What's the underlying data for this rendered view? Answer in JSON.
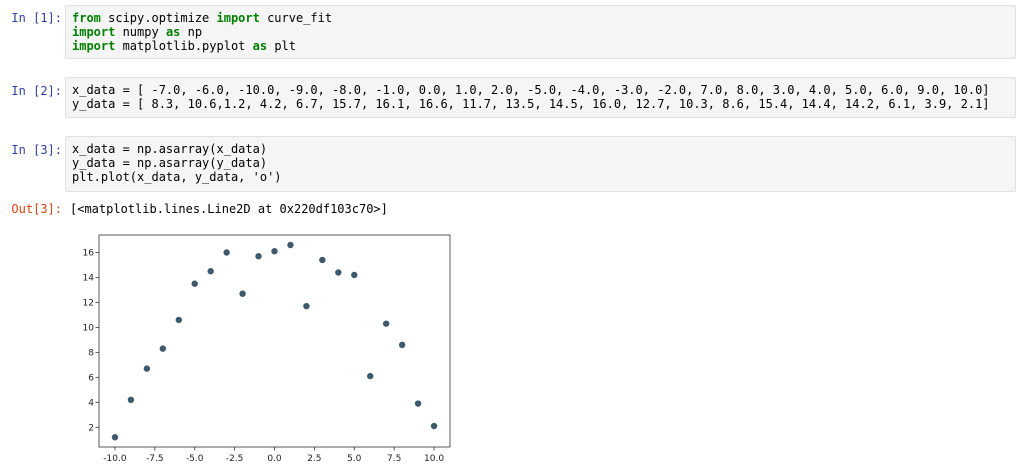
{
  "cells": [
    {
      "prompt": "In [1]:",
      "lines": [
        [
          {
            "t": "from",
            "kw": true
          },
          {
            "t": " scipy.optimize "
          },
          {
            "t": "import",
            "kw": true
          },
          {
            "t": " curve_fit"
          }
        ],
        [
          {
            "t": "import",
            "kw": true
          },
          {
            "t": " numpy "
          },
          {
            "t": "as",
            "kw": true
          },
          {
            "t": " np"
          }
        ],
        [
          {
            "t": "import",
            "kw": true
          },
          {
            "t": " matplotlib.pyplot "
          },
          {
            "t": "as",
            "kw": true
          },
          {
            "t": " plt"
          }
        ]
      ]
    },
    {
      "prompt": "In [2]:",
      "lines": [
        [
          {
            "t": "x_data = [ -7.0, -6.0, -10.0, -9.0, -8.0, -1.0, 0.0, 1.0, 2.0, -5.0, -4.0, -3.0, -2.0, 7.0, 8.0, 3.0, 4.0, 5.0, 6.0, 9.0, 10.0]"
          }
        ],
        [
          {
            "t": "y_data = [ 8.3, 10.6,1.2, 4.2, 6.7, 15.7, 16.1, 16.6, 11.7, 13.5, 14.5, 16.0, 12.7, 10.3, 8.6, 15.4, 14.4, 14.2, 6.1, 3.9, 2.1]"
          }
        ]
      ]
    },
    {
      "prompt": "In [3]:",
      "lines": [
        [
          {
            "t": "x_data = np.asarray(x_data)"
          }
        ],
        [
          {
            "t": "y_data = np.asarray(y_data)"
          }
        ],
        [
          {
            "t": "plt.plot(x_data, y_data, 'o')"
          }
        ]
      ]
    }
  ],
  "output": {
    "prompt": "Out[3]:",
    "text": "[<matplotlib.lines.Line2D at 0x220df103c70>]"
  },
  "chart_data": {
    "type": "scatter",
    "title": "",
    "xlabel": "",
    "ylabel": "",
    "x": [
      -7.0,
      -6.0,
      -10.0,
      -9.0,
      -8.0,
      -1.0,
      0.0,
      1.0,
      2.0,
      -5.0,
      -4.0,
      -3.0,
      -2.0,
      7.0,
      8.0,
      3.0,
      4.0,
      5.0,
      6.0,
      9.0,
      10.0
    ],
    "y": [
      8.3,
      10.6,
      1.2,
      4.2,
      6.7,
      15.7,
      16.1,
      16.6,
      11.7,
      13.5,
      14.5,
      16.0,
      12.7,
      10.3,
      8.6,
      15.4,
      14.4,
      14.2,
      6.1,
      3.9,
      2.1
    ],
    "xlim": [
      -11.0,
      11.0
    ],
    "ylim": [
      0.42,
      17.4
    ],
    "xticks": [
      -10.0,
      -7.5,
      -5.0,
      -2.5,
      0.0,
      2.5,
      5.0,
      7.5,
      10.0
    ],
    "xtick_labels": [
      "-10.0",
      "-7.5",
      "-5.0",
      "-2.5",
      "0.0",
      "2.5",
      "5.0",
      "7.5",
      "10.0"
    ],
    "yticks": [
      2,
      4,
      6,
      8,
      10,
      12,
      14,
      16
    ],
    "ytick_labels": [
      "2",
      "4",
      "6",
      "8",
      "10",
      "12",
      "14",
      "16"
    ],
    "grid": false,
    "marker_color": "#3d5a6c"
  }
}
